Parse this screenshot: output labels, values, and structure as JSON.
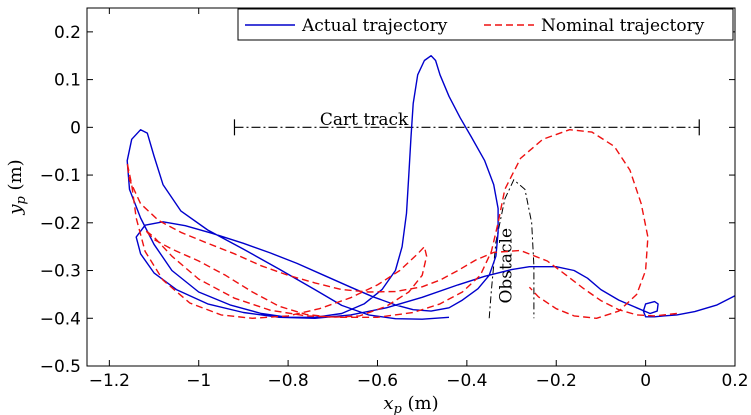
{
  "chart_data": {
    "type": "line",
    "xlabel_var": "x",
    "xlabel_sub": "p",
    "xlabel_unit": " (m)",
    "ylabel_var": "y",
    "ylabel_sub": "p",
    "ylabel_unit": " (m)",
    "xlim": [
      -1.25,
      0.2
    ],
    "ylim": [
      -0.5,
      0.25
    ],
    "xticks": [
      -1.2,
      -1,
      -0.8,
      -0.6,
      -0.4,
      -0.2,
      0,
      0.2
    ],
    "xtick_labels": [
      "−1.2",
      "−1",
      "−0.8",
      "−0.6",
      "−0.4",
      "−0.2",
      "0",
      "0.2"
    ],
    "yticks": [
      -0.5,
      -0.4,
      -0.3,
      -0.2,
      -0.1,
      0,
      0.1,
      0.2
    ],
    "ytick_labels": [
      "−0.5",
      "−0.4",
      "−0.3",
      "−0.2",
      "−0.1",
      "0",
      "0.1",
      "0.2"
    ],
    "grid": false,
    "legend_position": "top-right",
    "series": [
      {
        "name": "Actual trajectory",
        "color": "#0000cc",
        "style": "solid",
        "points": [
          [
            0.2,
            -0.353
          ],
          [
            0.16,
            -0.372
          ],
          [
            0.11,
            -0.386
          ],
          [
            0.07,
            -0.393
          ],
          [
            0.04,
            -0.395
          ],
          [
            0.02,
            -0.397
          ],
          [
            0.0,
            -0.397
          ],
          [
            -0.005,
            -0.385
          ],
          [
            0.0,
            -0.37
          ],
          [
            0.02,
            -0.365
          ],
          [
            0.028,
            -0.37
          ],
          [
            0.026,
            -0.385
          ],
          [
            0.01,
            -0.39
          ],
          [
            -0.02,
            -0.378
          ],
          [
            -0.06,
            -0.362
          ],
          [
            -0.1,
            -0.34
          ],
          [
            -0.13,
            -0.316
          ],
          [
            -0.16,
            -0.3
          ],
          [
            -0.2,
            -0.292
          ],
          [
            -0.26,
            -0.292
          ],
          [
            -0.3,
            -0.298
          ],
          [
            -0.36,
            -0.312
          ],
          [
            -0.42,
            -0.33
          ],
          [
            -0.5,
            -0.356
          ],
          [
            -0.58,
            -0.378
          ],
          [
            -0.66,
            -0.393
          ],
          [
            -0.74,
            -0.4
          ],
          [
            -0.82,
            -0.398
          ],
          [
            -0.9,
            -0.388
          ],
          [
            -0.98,
            -0.37
          ],
          [
            -1.05,
            -0.34
          ],
          [
            -1.1,
            -0.305
          ],
          [
            -1.13,
            -0.265
          ],
          [
            -1.14,
            -0.23
          ],
          [
            -1.12,
            -0.205
          ],
          [
            -1.08,
            -0.198
          ],
          [
            -1.03,
            -0.206
          ],
          [
            -0.97,
            -0.222
          ],
          [
            -0.9,
            -0.243
          ],
          [
            -0.84,
            -0.263
          ],
          [
            -0.78,
            -0.285
          ],
          [
            -0.72,
            -0.31
          ],
          [
            -0.66,
            -0.335
          ],
          [
            -0.61,
            -0.355
          ],
          [
            -0.56,
            -0.372
          ],
          [
            -0.52,
            -0.382
          ],
          [
            -0.48,
            -0.385
          ],
          [
            -0.44,
            -0.378
          ],
          [
            -0.41,
            -0.362
          ],
          [
            -0.375,
            -0.338
          ],
          [
            -0.35,
            -0.31
          ],
          [
            -0.335,
            -0.27
          ],
          [
            -0.33,
            -0.22
          ],
          [
            -0.33,
            -0.17
          ],
          [
            -0.34,
            -0.12
          ],
          [
            -0.36,
            -0.07
          ],
          [
            -0.39,
            -0.02
          ],
          [
            -0.415,
            0.02
          ],
          [
            -0.44,
            0.065
          ],
          [
            -0.46,
            0.11
          ],
          [
            -0.47,
            0.14
          ],
          [
            -0.48,
            0.15
          ],
          [
            -0.495,
            0.14
          ],
          [
            -0.51,
            0.11
          ],
          [
            -0.52,
            0.05
          ],
          [
            -0.525,
            -0.02
          ],
          [
            -0.53,
            -0.1
          ],
          [
            -0.535,
            -0.18
          ],
          [
            -0.545,
            -0.25
          ],
          [
            -0.56,
            -0.3
          ],
          [
            -0.59,
            -0.34
          ],
          [
            -0.63,
            -0.37
          ],
          [
            -0.68,
            -0.39
          ],
          [
            -0.74,
            -0.398
          ],
          [
            -0.8,
            -0.398
          ],
          [
            -0.86,
            -0.39
          ],
          [
            -0.93,
            -0.372
          ],
          [
            -1.0,
            -0.345
          ],
          [
            -1.06,
            -0.3
          ],
          [
            -1.1,
            -0.245
          ],
          [
            -1.13,
            -0.19
          ],
          [
            -1.155,
            -0.13
          ],
          [
            -1.16,
            -0.07
          ],
          [
            -1.15,
            -0.025
          ],
          [
            -1.13,
            -0.005
          ],
          [
            -1.115,
            -0.012
          ],
          [
            -1.1,
            -0.06
          ],
          [
            -1.08,
            -0.12
          ],
          [
            -1.04,
            -0.175
          ],
          [
            -0.98,
            -0.215
          ],
          [
            -0.9,
            -0.255
          ],
          [
            -0.82,
            -0.297
          ],
          [
            -0.74,
            -0.34
          ],
          [
            -0.68,
            -0.373
          ],
          [
            -0.62,
            -0.393
          ],
          [
            -0.56,
            -0.401
          ],
          [
            -0.5,
            -0.402
          ],
          [
            -0.44,
            -0.398
          ]
        ]
      },
      {
        "name": "Nominal trajectory",
        "color": "#ee1111",
        "style": "dashed",
        "points": [
          [
            0.07,
            -0.39
          ],
          [
            0.02,
            -0.395
          ],
          [
            -0.02,
            -0.393
          ],
          [
            -0.06,
            -0.382
          ],
          [
            -0.1,
            -0.363
          ],
          [
            -0.14,
            -0.337
          ],
          [
            -0.18,
            -0.308
          ],
          [
            -0.22,
            -0.28
          ],
          [
            -0.28,
            -0.258
          ],
          [
            -0.34,
            -0.262
          ],
          [
            -0.38,
            -0.278
          ],
          [
            -0.42,
            -0.3
          ],
          [
            -0.46,
            -0.32
          ],
          [
            -0.5,
            -0.334
          ],
          [
            -0.56,
            -0.344
          ],
          [
            -0.62,
            -0.345
          ],
          [
            -0.68,
            -0.34
          ],
          [
            -0.74,
            -0.326
          ],
          [
            -0.8,
            -0.31
          ],
          [
            -0.86,
            -0.29
          ],
          [
            -0.92,
            -0.265
          ],
          [
            -0.98,
            -0.243
          ],
          [
            -1.04,
            -0.22
          ],
          [
            -1.09,
            -0.195
          ],
          [
            -1.13,
            -0.16
          ],
          [
            -1.155,
            -0.11
          ],
          [
            -1.16,
            -0.075
          ],
          [
            -1.15,
            -0.12
          ],
          [
            -1.14,
            -0.19
          ],
          [
            -1.12,
            -0.26
          ],
          [
            -1.08,
            -0.32
          ],
          [
            -1.02,
            -0.368
          ],
          [
            -0.95,
            -0.393
          ],
          [
            -0.88,
            -0.4
          ],
          [
            -0.8,
            -0.395
          ],
          [
            -0.73,
            -0.38
          ],
          [
            -0.66,
            -0.357
          ],
          [
            -0.6,
            -0.33
          ],
          [
            -0.55,
            -0.3
          ],
          [
            -0.51,
            -0.265
          ],
          [
            -0.495,
            -0.25
          ],
          [
            -0.49,
            -0.27
          ],
          [
            -0.5,
            -0.31
          ],
          [
            -0.53,
            -0.345
          ],
          [
            -0.58,
            -0.375
          ],
          [
            -0.64,
            -0.395
          ],
          [
            -0.7,
            -0.398
          ],
          [
            -0.76,
            -0.392
          ],
          [
            -0.82,
            -0.375
          ],
          [
            -0.88,
            -0.345
          ],
          [
            -0.94,
            -0.31
          ],
          [
            -1.0,
            -0.28
          ],
          [
            -1.06,
            -0.255
          ],
          [
            -1.1,
            -0.235
          ],
          [
            -1.12,
            -0.215
          ],
          [
            -1.1,
            -0.23
          ],
          [
            -1.06,
            -0.27
          ],
          [
            -1.0,
            -0.318
          ],
          [
            -0.92,
            -0.358
          ],
          [
            -0.84,
            -0.383
          ],
          [
            -0.76,
            -0.395
          ],
          [
            -0.68,
            -0.398
          ],
          [
            -0.6,
            -0.398
          ],
          [
            -0.52,
            -0.388
          ],
          [
            -0.46,
            -0.37
          ],
          [
            -0.41,
            -0.345
          ],
          [
            -0.37,
            -0.31
          ],
          [
            -0.345,
            -0.26
          ],
          [
            -0.33,
            -0.2
          ],
          [
            -0.315,
            -0.13
          ],
          [
            -0.28,
            -0.065
          ],
          [
            -0.23,
            -0.025
          ],
          [
            -0.17,
            -0.005
          ],
          [
            -0.12,
            -0.01
          ],
          [
            -0.07,
            -0.04
          ],
          [
            -0.035,
            -0.09
          ],
          [
            -0.01,
            -0.16
          ],
          [
            0.005,
            -0.23
          ],
          [
            0.0,
            -0.3
          ],
          [
            -0.02,
            -0.35
          ],
          [
            -0.06,
            -0.385
          ],
          [
            -0.11,
            -0.4
          ],
          [
            -0.16,
            -0.395
          ],
          [
            -0.2,
            -0.38
          ],
          [
            -0.24,
            -0.355
          ],
          [
            -0.26,
            -0.335
          ]
        ]
      }
    ],
    "annotations": [
      {
        "text": "Cart track",
        "line_x": [
          -0.92,
          0.12
        ],
        "line_y": 0.0,
        "label_x": -0.63,
        "label_y": 0.005
      },
      {
        "text": "Obstacle",
        "points": [
          [
            -0.35,
            -0.4
          ],
          [
            -0.345,
            -0.34
          ],
          [
            -0.335,
            -0.24
          ],
          [
            -0.315,
            -0.15
          ],
          [
            -0.295,
            -0.11
          ],
          [
            -0.27,
            -0.13
          ],
          [
            -0.255,
            -0.2
          ],
          [
            -0.25,
            -0.29
          ],
          [
            -0.25,
            -0.4
          ]
        ],
        "label_x": -0.3,
        "label_y": -0.29
      }
    ]
  }
}
